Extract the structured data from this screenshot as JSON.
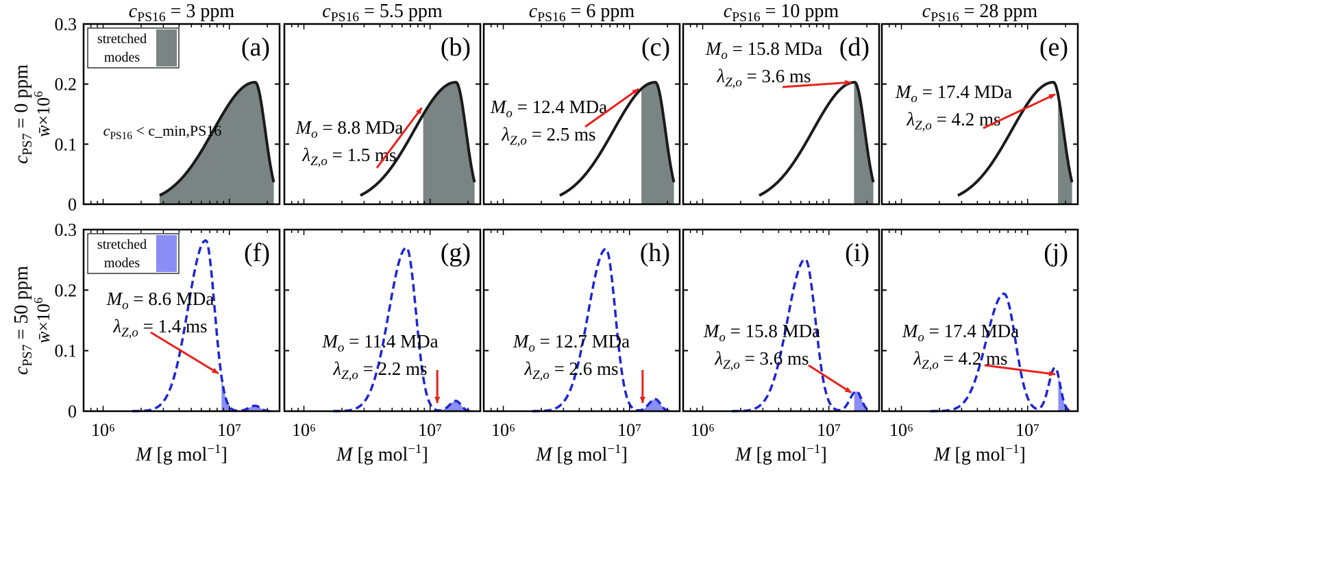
{
  "figure": {
    "column_titles": [
      "c_PS16 = 3 ppm",
      "c_PS16 = 5.5 ppm",
      "c_PS16 = 6 ppm",
      "c_PS16 = 10 ppm",
      "c_PS16 = 28 ppm"
    ],
    "row_titles": [
      "c_PS7 = 0 ppm",
      "c_PS7 = 50 ppm"
    ],
    "ylabel": "w̄×10⁶",
    "xlabel": "M [g mol⁻¹]",
    "x_ticks": [
      "10⁶",
      "10⁷"
    ],
    "y_ticks": [
      "0",
      "0.1",
      "0.2",
      "0.3"
    ],
    "legend": {
      "line1": "stretched",
      "line2": "modes"
    },
    "colors": {
      "top_fill": "#7a8583",
      "bottom_fill": "#8a8ef5",
      "bottom_line": "#1c26d4",
      "arrow": "#e8201a",
      "top_line": "#1a1a1a"
    }
  },
  "chart_data": [
    {
      "type": "area",
      "panel": "(a)",
      "row": 0,
      "col": 0,
      "title": "c_PS16 = 3 ppm",
      "xscale": "log",
      "xlim": [
        700000,
        25000000
      ],
      "ylim": [
        0,
        0.3
      ],
      "peaks": [
        {
          "center": 16000000,
          "height": 0.203,
          "left_width": 0.33,
          "right_width": 0.08
        }
      ],
      "curve_style": "solid",
      "shade_from": 2800000,
      "label_lines": [
        "c_PS16 < c_min,PS16"
      ],
      "legend": true
    },
    {
      "type": "area",
      "panel": "(b)",
      "row": 0,
      "col": 1,
      "title": "c_PS16 = 5.5 ppm",
      "xscale": "log",
      "xlim": [
        700000,
        25000000
      ],
      "ylim": [
        0,
        0.3
      ],
      "peaks": [
        {
          "center": 16000000,
          "height": 0.203,
          "left_width": 0.33,
          "right_width": 0.08
        }
      ],
      "curve_style": "solid",
      "shade_from": 8800000,
      "label_lines": [
        "Mo = 8.8 MDa",
        "λZ,o = 1.5 ms"
      ],
      "arrow_to": 8800000
    },
    {
      "type": "area",
      "panel": "(c)",
      "row": 0,
      "col": 2,
      "title": "c_PS16 = 6 ppm",
      "xscale": "log",
      "xlim": [
        700000,
        25000000
      ],
      "ylim": [
        0,
        0.3
      ],
      "peaks": [
        {
          "center": 16000000,
          "height": 0.203,
          "left_width": 0.33,
          "right_width": 0.08
        }
      ],
      "curve_style": "solid",
      "shade_from": 12400000,
      "label_lines": [
        "Mo = 12.4 MDa",
        "λZ,o = 2.5 ms"
      ],
      "arrow_to": 12400000
    },
    {
      "type": "area",
      "panel": "(d)",
      "row": 0,
      "col": 3,
      "title": "c_PS16 = 10 ppm",
      "xscale": "log",
      "xlim": [
        700000,
        25000000
      ],
      "ylim": [
        0,
        0.3
      ],
      "peaks": [
        {
          "center": 16000000,
          "height": 0.203,
          "left_width": 0.33,
          "right_width": 0.08
        }
      ],
      "curve_style": "solid",
      "shade_from": 15800000,
      "label_lines": [
        "Mo = 15.8 MDa",
        "λZ,o = 3.6 ms"
      ],
      "arrow_to": 15800000
    },
    {
      "type": "area",
      "panel": "(e)",
      "row": 0,
      "col": 4,
      "title": "c_PS16 = 28 ppm",
      "xscale": "log",
      "xlim": [
        700000,
        25000000
      ],
      "ylim": [
        0,
        0.3
      ],
      "peaks": [
        {
          "center": 16000000,
          "height": 0.203,
          "left_width": 0.33,
          "right_width": 0.08
        }
      ],
      "curve_style": "solid",
      "shade_from": 17400000,
      "label_lines": [
        "Mo = 17.4 MDa",
        "λZ,o = 4.2 ms"
      ],
      "arrow_to": 17400000
    },
    {
      "type": "area",
      "panel": "(f)",
      "row": 1,
      "col": 0,
      "title": "c_PS7 = 50 ppm",
      "xscale": "log",
      "xlim": [
        700000,
        25000000
      ],
      "ylim": [
        0,
        0.3
      ],
      "peaks": [
        {
          "center": 6500000,
          "height": 0.282,
          "left_width": 0.14,
          "right_width": 0.07
        },
        {
          "center": 16000000,
          "height": 0.009,
          "left_width": 0.05,
          "right_width": 0.04
        }
      ],
      "curve_style": "dashed",
      "shade_from": 8600000,
      "label_lines": [
        "Mo = 8.6 MDa",
        "λZ,o = 1.4 ms"
      ],
      "arrow_to": 8600000,
      "legend": true
    },
    {
      "type": "area",
      "panel": "(g)",
      "row": 1,
      "col": 1,
      "xscale": "log",
      "xlim": [
        700000,
        25000000
      ],
      "ylim": [
        0,
        0.3
      ],
      "peaks": [
        {
          "center": 6500000,
          "height": 0.27,
          "left_width": 0.14,
          "right_width": 0.075
        },
        {
          "center": 16000000,
          "height": 0.017,
          "left_width": 0.05,
          "right_width": 0.04
        }
      ],
      "curve_style": "dashed",
      "shade_from": 11400000,
      "label_lines": [
        "Mo = 11.4 MDa",
        "λZ,o = 2.2 ms"
      ],
      "arrow_to": 11400000
    },
    {
      "type": "area",
      "panel": "(h)",
      "row": 1,
      "col": 2,
      "xscale": "log",
      "xlim": [
        700000,
        25000000
      ],
      "ylim": [
        0,
        0.3
      ],
      "peaks": [
        {
          "center": 6500000,
          "height": 0.268,
          "left_width": 0.14,
          "right_width": 0.075
        },
        {
          "center": 16000000,
          "height": 0.02,
          "left_width": 0.05,
          "right_width": 0.04
        }
      ],
      "curve_style": "dashed",
      "shade_from": 12700000,
      "label_lines": [
        "Mo = 12.7 MDa",
        "λZ,o = 2.6 ms"
      ],
      "arrow_to": 12700000
    },
    {
      "type": "area",
      "panel": "(i)",
      "row": 1,
      "col": 3,
      "xscale": "log",
      "xlim": [
        700000,
        25000000
      ],
      "ylim": [
        0,
        0.3
      ],
      "peaks": [
        {
          "center": 6500000,
          "height": 0.251,
          "left_width": 0.14,
          "right_width": 0.08
        },
        {
          "center": 16500000,
          "height": 0.033,
          "left_width": 0.05,
          "right_width": 0.04
        }
      ],
      "curve_style": "dashed",
      "shade_from": 15800000,
      "label_lines": [
        "Mo = 15.8 MDa",
        "λZ,o = 3.6 ms"
      ],
      "arrow_to": 15800000
    },
    {
      "type": "area",
      "panel": "(j)",
      "row": 1,
      "col": 4,
      "xscale": "log",
      "xlim": [
        700000,
        25000000
      ],
      "ylim": [
        0,
        0.3
      ],
      "peaks": [
        {
          "center": 6500000,
          "height": 0.194,
          "left_width": 0.14,
          "right_width": 0.09
        },
        {
          "center": 16500000,
          "height": 0.072,
          "left_width": 0.05,
          "right_width": 0.04
        }
      ],
      "curve_style": "dashed",
      "shade_from": 17400000,
      "label_lines": [
        "Mo = 17.4 MDa",
        "λZ,o = 4.2 ms"
      ],
      "arrow_to": 17400000
    }
  ]
}
